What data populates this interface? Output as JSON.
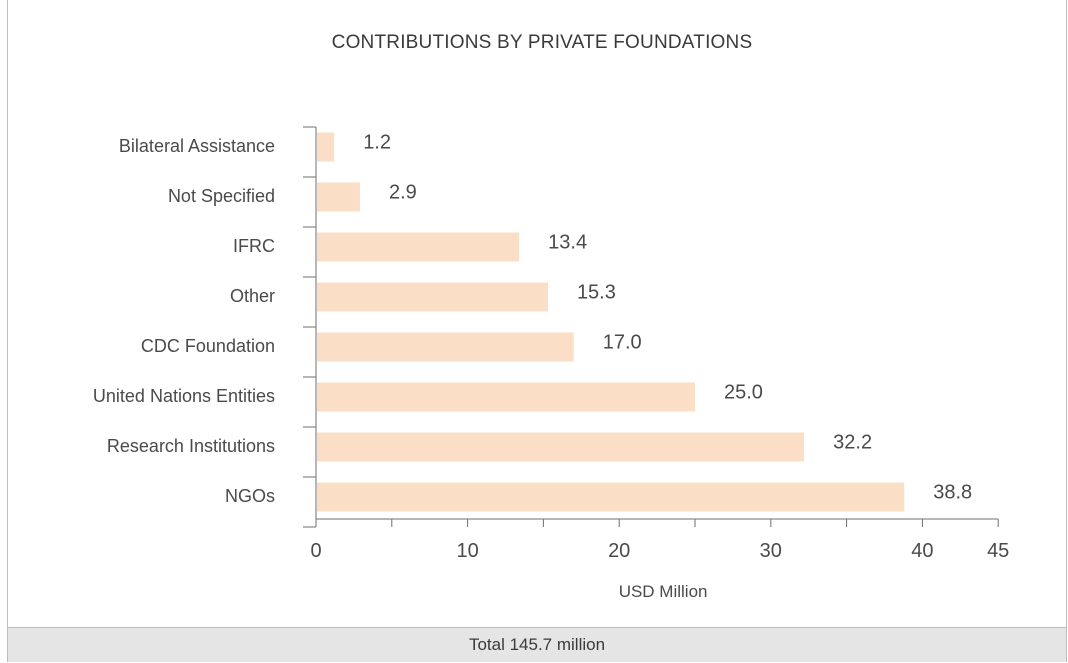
{
  "chart_data": {
    "type": "bar",
    "orientation": "horizontal",
    "title": "CONTRIBUTIONS BY PRIVATE FOUNDATIONS",
    "xlabel": "USD Million",
    "ylabel": "",
    "categories": [
      "Bilateral Assistance",
      "Not Specified",
      "IFRC",
      "Other",
      "CDC Foundation",
      "United Nations Entities",
      "Research Institutions",
      "NGOs"
    ],
    "values": [
      1.2,
      2.9,
      13.4,
      15.3,
      17.0,
      25.0,
      32.2,
      38.8
    ],
    "value_labels": [
      "1.2",
      "2.9",
      "13.4",
      "15.3",
      "17.0",
      "25.0",
      "32.2",
      "38.8"
    ],
    "xlim": [
      0,
      45
    ],
    "x_ticks": [
      0,
      10,
      20,
      30,
      40,
      45
    ],
    "grid": false,
    "legend": "none",
    "bar_color": "#fadfc6",
    "axis_color": "#6f6f6f"
  },
  "footer": {
    "total_text": "Total 145.7 million"
  }
}
